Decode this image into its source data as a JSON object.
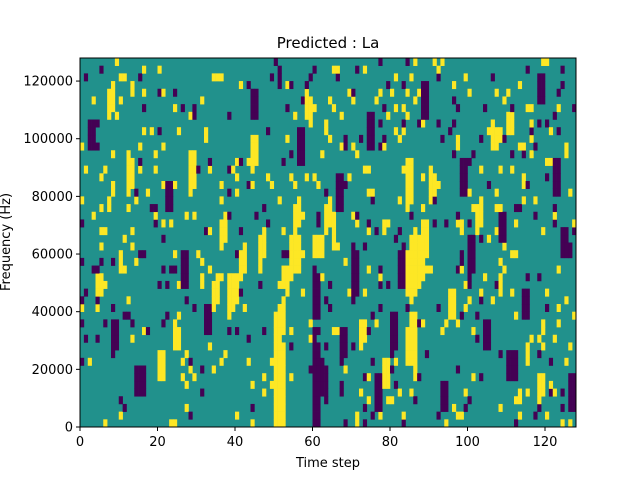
{
  "chart_data": {
    "type": "heatmap",
    "title": "Predicted : La",
    "xlabel": "Time step",
    "ylabel": "Frequency (Hz)",
    "xlim": [
      0,
      128
    ],
    "ylim": [
      0,
      128000
    ],
    "x_ticks": [
      0,
      20,
      40,
      60,
      80,
      100,
      120
    ],
    "y_ticks": [
      0,
      20000,
      40000,
      60000,
      80000,
      100000,
      120000
    ],
    "x_tick_labels": [
      "0",
      "20",
      "40",
      "60",
      "80",
      "100",
      "120"
    ],
    "y_tick_labels": [
      "0",
      "20000",
      "40000",
      "60000",
      "80000",
      "100000",
      "120000"
    ],
    "n_time_steps": 128,
    "n_freq_bins": 48,
    "background_level": "mid",
    "colors": {
      "low": "#440154",
      "mid": "#21918c",
      "high": "#fde725"
    },
    "high_cells": [
      [
        50,
        0,
        10
      ],
      [
        51,
        0,
        10
      ],
      [
        52,
        0,
        10
      ],
      [
        50,
        11,
        14
      ],
      [
        51,
        11,
        15
      ],
      [
        52,
        12,
        16
      ],
      [
        52,
        18,
        20
      ],
      [
        53,
        17,
        20
      ],
      [
        54,
        19,
        24
      ],
      [
        55,
        20,
        24
      ],
      [
        56,
        20,
        24
      ],
      [
        55,
        25,
        28
      ],
      [
        56,
        26,
        29
      ],
      [
        84,
        8,
        12
      ],
      [
        85,
        8,
        14
      ],
      [
        86,
        6,
        14
      ],
      [
        84,
        17,
        22
      ],
      [
        85,
        16,
        24
      ],
      [
        86,
        17,
        25
      ],
      [
        87,
        18,
        24
      ],
      [
        88,
        20,
        26
      ],
      [
        84,
        28,
        34
      ],
      [
        85,
        29,
        34
      ],
      [
        89,
        22,
        26
      ],
      [
        38,
        14,
        18
      ],
      [
        39,
        15,
        19
      ],
      [
        40,
        16,
        19
      ],
      [
        41,
        19,
        22
      ],
      [
        42,
        20,
        23
      ],
      [
        36,
        23,
        26
      ],
      [
        37,
        24,
        27
      ],
      [
        46,
        21,
        24
      ],
      [
        47,
        22,
        24
      ],
      [
        60,
        22,
        24
      ],
      [
        61,
        22,
        24
      ],
      [
        62,
        22,
        24
      ],
      [
        63,
        25,
        28
      ],
      [
        64,
        26,
        29
      ],
      [
        65,
        24,
        27
      ],
      [
        4,
        17,
        19
      ],
      [
        5,
        17,
        19
      ],
      [
        24,
        10,
        13
      ],
      [
        25,
        10,
        12
      ],
      [
        28,
        30,
        34
      ],
      [
        29,
        31,
        35
      ],
      [
        34,
        15,
        18
      ],
      [
        35,
        16,
        19
      ],
      [
        102,
        25,
        28
      ],
      [
        103,
        26,
        29
      ],
      [
        110,
        38,
        40
      ],
      [
        111,
        38,
        40
      ],
      [
        118,
        3,
        6
      ],
      [
        119,
        4,
        6
      ],
      [
        7,
        40,
        43
      ],
      [
        8,
        41,
        44
      ],
      [
        12,
        30,
        34
      ],
      [
        13,
        31,
        34
      ],
      [
        44,
        33,
        37
      ],
      [
        45,
        34,
        37
      ],
      [
        72,
        10,
        13
      ],
      [
        73,
        11,
        13
      ],
      [
        95,
        14,
        17
      ],
      [
        96,
        14,
        17
      ],
      [
        78,
        5,
        8
      ],
      [
        79,
        5,
        8
      ],
      [
        106,
        36,
        39
      ],
      [
        107,
        36,
        38
      ],
      [
        90,
        30,
        33
      ],
      [
        91,
        30,
        32
      ],
      [
        20,
        6,
        9
      ],
      [
        21,
        6,
        8
      ],
      [
        58,
        40,
        43
      ],
      [
        59,
        40,
        42
      ]
    ],
    "low_cells": [
      [
        60,
        0,
        12
      ],
      [
        61,
        0,
        10
      ],
      [
        62,
        4,
        8
      ],
      [
        63,
        3,
        7
      ],
      [
        60,
        14,
        20
      ],
      [
        61,
        14,
        19
      ],
      [
        67,
        8,
        12
      ],
      [
        68,
        9,
        12
      ],
      [
        70,
        16,
        22
      ],
      [
        71,
        17,
        22
      ],
      [
        76,
        2,
        6
      ],
      [
        77,
        2,
        6
      ],
      [
        80,
        9,
        14
      ],
      [
        81,
        10,
        14
      ],
      [
        82,
        18,
        22
      ],
      [
        83,
        18,
        23
      ],
      [
        93,
        2,
        5
      ],
      [
        94,
        2,
        5
      ],
      [
        110,
        6,
        9
      ],
      [
        111,
        6,
        9
      ],
      [
        112,
        6,
        9
      ],
      [
        14,
        4,
        7
      ],
      [
        15,
        4,
        7
      ],
      [
        16,
        4,
        7
      ],
      [
        26,
        18,
        22
      ],
      [
        27,
        18,
        22
      ],
      [
        32,
        12,
        15
      ],
      [
        33,
        12,
        15
      ],
      [
        100,
        20,
        24
      ],
      [
        101,
        20,
        24
      ],
      [
        104,
        10,
        13
      ],
      [
        105,
        10,
        13
      ],
      [
        114,
        14,
        17
      ],
      [
        115,
        14,
        17
      ],
      [
        122,
        30,
        34
      ],
      [
        123,
        30,
        34
      ],
      [
        126,
        2,
        6
      ],
      [
        127,
        2,
        6
      ],
      [
        56,
        34,
        38
      ],
      [
        57,
        34,
        38
      ],
      [
        66,
        28,
        32
      ],
      [
        67,
        28,
        32
      ],
      [
        74,
        36,
        40
      ],
      [
        75,
        36,
        40
      ],
      [
        88,
        40,
        44
      ],
      [
        89,
        40,
        44
      ],
      [
        98,
        30,
        34
      ],
      [
        99,
        30,
        34
      ],
      [
        108,
        24,
        27
      ],
      [
        109,
        24,
        27
      ],
      [
        118,
        42,
        45
      ],
      [
        119,
        42,
        45
      ],
      [
        44,
        40,
        43
      ],
      [
        45,
        40,
        43
      ],
      [
        22,
        28,
        31
      ],
      [
        23,
        28,
        31
      ],
      [
        8,
        10,
        13
      ],
      [
        9,
        10,
        13
      ],
      [
        2,
        36,
        39
      ],
      [
        3,
        36,
        39
      ],
      [
        124,
        22,
        25
      ],
      [
        125,
        22,
        25
      ]
    ],
    "noise_seed": 7
  }
}
